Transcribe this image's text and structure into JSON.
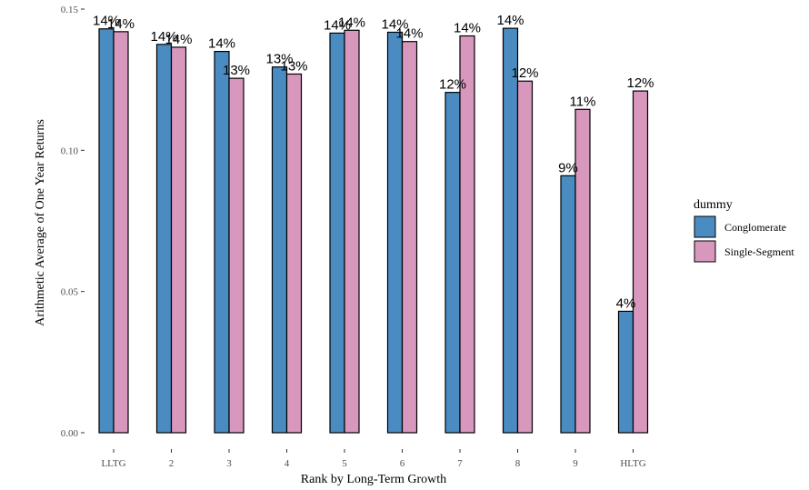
{
  "chart_data": {
    "type": "bar",
    "title": "",
    "xlabel": "Rank by Long-Term Growth",
    "ylabel": "Arithmetic Average of One Year Returns",
    "ylim": [
      0,
      0.15
    ],
    "yticks": [
      "0.00",
      "0.05",
      "0.10",
      "0.15"
    ],
    "ytick_values": [
      0,
      0.05,
      0.1,
      0.15
    ],
    "categories": [
      "LLTG",
      "2",
      "3",
      "4",
      "5",
      "6",
      "7",
      "8",
      "9",
      "HLTG"
    ],
    "series": [
      {
        "name": "Conglomerate",
        "color": "#4a8cc2",
        "values": [
          0.143,
          0.1375,
          0.135,
          0.1295,
          0.1415,
          0.1418,
          0.1205,
          0.1432,
          0.091,
          0.043
        ],
        "labels": [
          "14%",
          "14%",
          "14%",
          "13%",
          "14%",
          "14%",
          "12%",
          "14%",
          "9%",
          "4%"
        ]
      },
      {
        "name": "Single-Segment",
        "color": "#d898bd",
        "values": [
          0.142,
          0.1365,
          0.1255,
          0.127,
          0.1425,
          0.1385,
          0.1405,
          0.1245,
          0.1145,
          0.121
        ],
        "labels": [
          "14%",
          "14%",
          "13%",
          "13%",
          "14%",
          "14%",
          "14%",
          "12%",
          "11%",
          "12%"
        ]
      }
    ],
    "legend": {
      "title": "dummy",
      "position": "right"
    },
    "grid": false
  }
}
